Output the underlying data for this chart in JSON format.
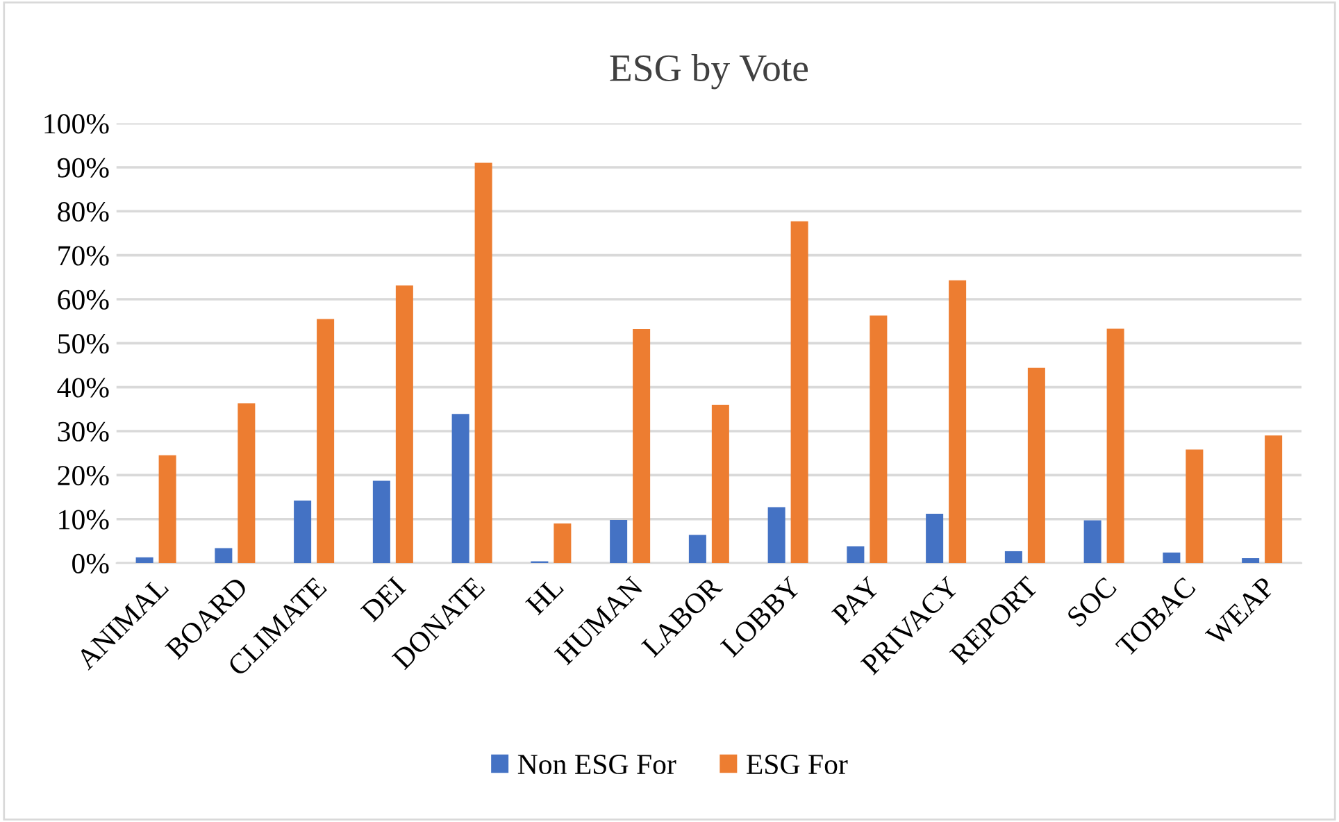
{
  "chart_data": {
    "type": "bar",
    "title": "ESG by Vote",
    "categories": [
      "ANIMAL",
      "BOARD",
      "CLIMATE",
      "DEI",
      "DONATE",
      "HL",
      "HUMAN",
      "LABOR",
      "LOBBY",
      "PAY",
      "PRIVACY",
      "REPORT",
      "SOC",
      "TOBAC",
      "WEAP"
    ],
    "series": [
      {
        "name": "Non ESG For",
        "color": "#4472c4",
        "values": [
          1.3,
          3.4,
          14.2,
          18.7,
          33.9,
          0.4,
          9.8,
          6.4,
          12.7,
          3.8,
          11.2,
          2.7,
          9.7,
          2.4,
          1.1
        ]
      },
      {
        "name": "ESG For",
        "color": "#ed7d31",
        "values": [
          24.5,
          36.3,
          55.5,
          63.1,
          91.0,
          9.0,
          53.2,
          36.0,
          77.7,
          56.3,
          64.3,
          44.4,
          53.3,
          25.8,
          29.0
        ]
      }
    ],
    "ylim": [
      0,
      100
    ],
    "yticks": [
      {
        "value": 0,
        "label": "0%"
      },
      {
        "value": 10,
        "label": "10%"
      },
      {
        "value": 20,
        "label": "20%"
      },
      {
        "value": 30,
        "label": "30%"
      },
      {
        "value": 40,
        "label": "40%"
      },
      {
        "value": 50,
        "label": "50%"
      },
      {
        "value": 60,
        "label": "60%"
      },
      {
        "value": 70,
        "label": "70%"
      },
      {
        "value": 80,
        "label": "80%"
      },
      {
        "value": 90,
        "label": "90%"
      },
      {
        "value": 100,
        "label": "100%"
      }
    ],
    "grid": "y",
    "legend": "bottom"
  }
}
